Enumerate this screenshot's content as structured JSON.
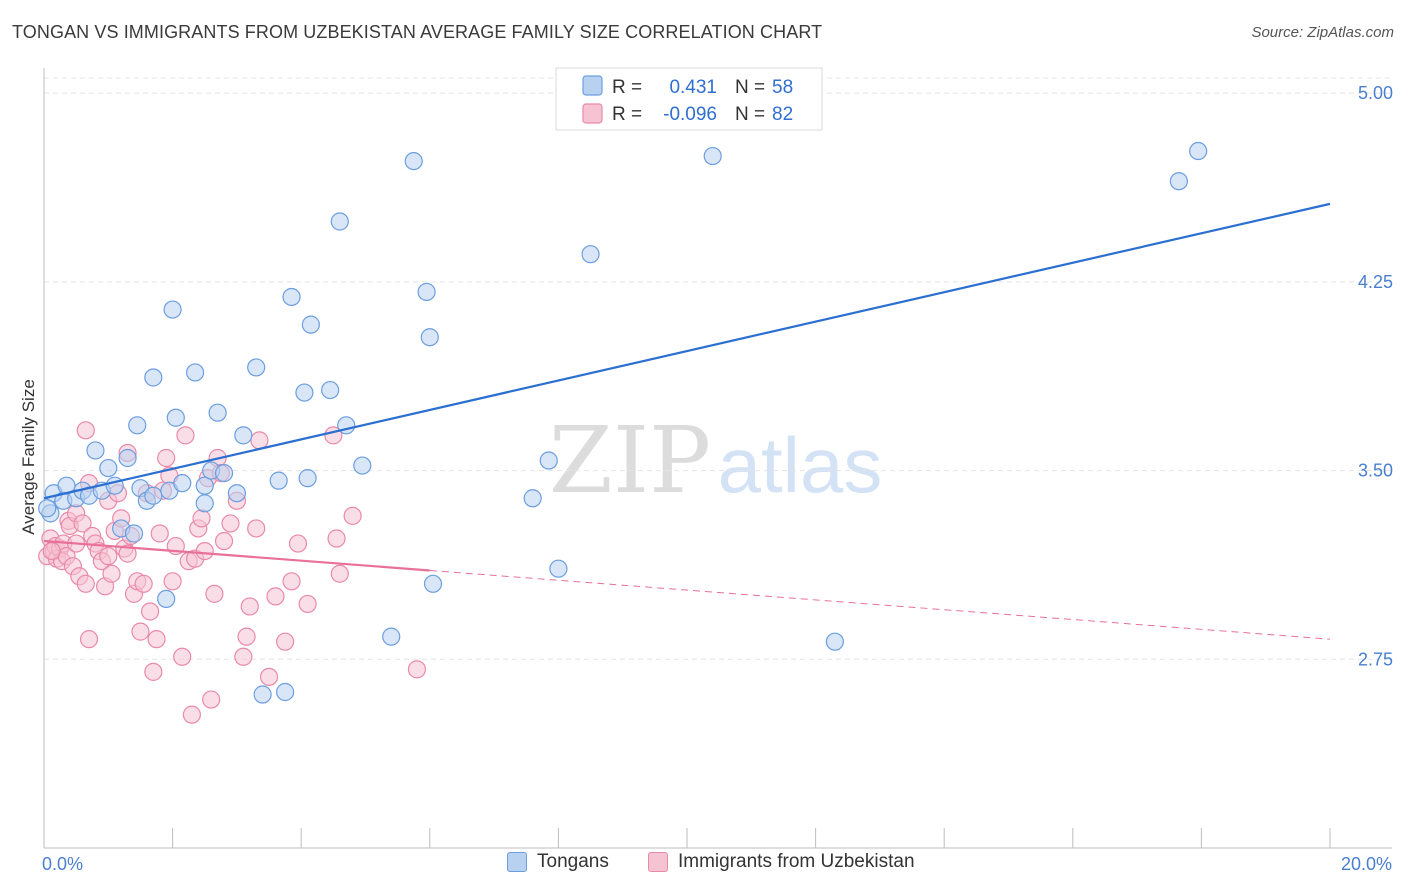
{
  "header": {
    "title": "TONGAN VS IMMIGRANTS FROM UZBEKISTAN AVERAGE FAMILY SIZE CORRELATION CHART",
    "source": "Source: ZipAtlas.com"
  },
  "watermark": {
    "zip": "ZIP",
    "atlas": "atlas"
  },
  "legend": {
    "r_label": "R =",
    "n_label": "N =",
    "rows": [
      {
        "r": "0.431",
        "n": "58"
      },
      {
        "r": "-0.096",
        "n": "82"
      }
    ]
  },
  "bottom_legend": [
    "Tongans",
    "Immigrants from Uzbekistan"
  ],
  "colors": {
    "blue_fill": "#b9d1f1",
    "blue_stroke": "#6b9ee0",
    "blue_line": "#2b6fd0",
    "pink_fill": "#f6c3d3",
    "pink_stroke": "#e98aa8",
    "pink_line": "#e8709a",
    "axis_text": "#4a7fd0",
    "grid": "#e4e4e4"
  },
  "chart_data": {
    "type": "scatter",
    "title": "TONGAN VS IMMIGRANTS FROM UZBEKISTAN AVERAGE FAMILY SIZE CORRELATION CHART",
    "xlabel": "",
    "ylabel": "Average Family Size",
    "xlim": [
      0,
      20
    ],
    "ylim": [
      2.0,
      5.1
    ],
    "x_tick_labels": [
      {
        "value": 0,
        "label": "0.0%"
      },
      {
        "value": 20,
        "label": "20.0%"
      }
    ],
    "x_minor_ticks": [
      0,
      2,
      4,
      6,
      8,
      10,
      12,
      14,
      16,
      18,
      20
    ],
    "y_ticks": [
      {
        "value": 2.75,
        "label": "2.75"
      },
      {
        "value": 3.5,
        "label": "3.50"
      },
      {
        "value": 4.25,
        "label": "4.25"
      },
      {
        "value": 5.0,
        "label": "5.00"
      }
    ],
    "series": [
      {
        "name": "Tongans",
        "color": "blue",
        "r": 0.431,
        "n": 58,
        "trend": {
          "x0": 0,
          "y0": 3.39,
          "x1": 20,
          "y1": 4.56,
          "dashed_from": null
        },
        "points": [
          [
            0.1,
            3.33
          ],
          [
            0.15,
            3.41
          ],
          [
            0.3,
            3.38
          ],
          [
            0.35,
            3.44
          ],
          [
            0.5,
            3.39
          ],
          [
            0.6,
            3.42
          ],
          [
            0.7,
            3.4
          ],
          [
            0.8,
            3.58
          ],
          [
            0.9,
            3.42
          ],
          [
            1.0,
            3.51
          ],
          [
            1.1,
            3.44
          ],
          [
            1.2,
            3.27
          ],
          [
            1.3,
            3.55
          ],
          [
            1.4,
            3.25
          ],
          [
            1.5,
            3.43
          ],
          [
            1.45,
            3.68
          ],
          [
            1.6,
            3.38
          ],
          [
            1.7,
            3.4
          ],
          [
            1.7,
            3.87
          ],
          [
            1.9,
            2.99
          ],
          [
            1.95,
            3.42
          ],
          [
            2.0,
            4.14
          ],
          [
            2.05,
            3.71
          ],
          [
            2.15,
            3.45
          ],
          [
            2.35,
            3.89
          ],
          [
            2.5,
            3.37
          ],
          [
            2.5,
            3.44
          ],
          [
            2.6,
            3.5
          ],
          [
            2.7,
            3.73
          ],
          [
            2.8,
            3.49
          ],
          [
            3.0,
            3.41
          ],
          [
            3.1,
            3.64
          ],
          [
            3.3,
            3.91
          ],
          [
            3.4,
            2.61
          ],
          [
            3.65,
            3.46
          ],
          [
            3.75,
            2.62
          ],
          [
            3.85,
            4.19
          ],
          [
            4.05,
            3.81
          ],
          [
            4.15,
            4.08
          ],
          [
            4.1,
            3.47
          ],
          [
            4.45,
            3.82
          ],
          [
            4.6,
            4.49
          ],
          [
            4.7,
            3.68
          ],
          [
            4.95,
            3.52
          ],
          [
            5.4,
            2.84
          ],
          [
            5.75,
            4.73
          ],
          [
            5.95,
            4.21
          ],
          [
            6.0,
            4.03
          ],
          [
            6.05,
            3.05
          ],
          [
            7.6,
            3.39
          ],
          [
            7.85,
            3.54
          ],
          [
            8.0,
            3.11
          ],
          [
            8.5,
            4.36
          ],
          [
            10.4,
            4.75
          ],
          [
            12.3,
            2.82
          ],
          [
            17.65,
            4.65
          ],
          [
            17.95,
            4.77
          ],
          [
            0.05,
            3.35
          ]
        ]
      },
      {
        "name": "Immigrants from Uzbekistan",
        "color": "pink",
        "r": -0.096,
        "n": 82,
        "trend": {
          "x0": 0,
          "y0": 3.22,
          "x1": 20,
          "y1": 2.83,
          "solid_until": 6.0
        },
        "points": [
          [
            0.05,
            3.16
          ],
          [
            0.1,
            3.23
          ],
          [
            0.15,
            3.18
          ],
          [
            0.18,
            3.2
          ],
          [
            0.2,
            3.15
          ],
          [
            0.25,
            3.19
          ],
          [
            0.28,
            3.14
          ],
          [
            0.3,
            3.21
          ],
          [
            0.35,
            3.16
          ],
          [
            0.38,
            3.3
          ],
          [
            0.4,
            3.28
          ],
          [
            0.45,
            3.12
          ],
          [
            0.5,
            3.33
          ],
          [
            0.5,
            3.21
          ],
          [
            0.55,
            3.08
          ],
          [
            0.6,
            3.29
          ],
          [
            0.65,
            3.05
          ],
          [
            0.65,
            3.66
          ],
          [
            0.7,
            3.45
          ],
          [
            0.7,
            2.83
          ],
          [
            0.75,
            3.24
          ],
          [
            0.8,
            3.21
          ],
          [
            0.85,
            3.18
          ],
          [
            0.9,
            3.14
          ],
          [
            0.95,
            3.04
          ],
          [
            1.0,
            3.16
          ],
          [
            1.0,
            3.38
          ],
          [
            1.05,
            3.09
          ],
          [
            1.1,
            3.26
          ],
          [
            1.15,
            3.41
          ],
          [
            1.2,
            3.31
          ],
          [
            1.25,
            3.19
          ],
          [
            1.3,
            3.57
          ],
          [
            1.3,
            3.17
          ],
          [
            1.35,
            3.24
          ],
          [
            1.4,
            3.01
          ],
          [
            1.45,
            3.06
          ],
          [
            1.5,
            2.86
          ],
          [
            1.55,
            3.05
          ],
          [
            1.6,
            3.41
          ],
          [
            1.65,
            2.94
          ],
          [
            1.7,
            2.7
          ],
          [
            1.75,
            2.83
          ],
          [
            1.8,
            3.25
          ],
          [
            1.85,
            3.42
          ],
          [
            1.9,
            3.55
          ],
          [
            1.95,
            3.48
          ],
          [
            2.0,
            3.06
          ],
          [
            2.05,
            3.2
          ],
          [
            2.15,
            2.76
          ],
          [
            2.2,
            3.64
          ],
          [
            2.25,
            3.14
          ],
          [
            2.3,
            2.53
          ],
          [
            2.35,
            3.15
          ],
          [
            2.4,
            3.27
          ],
          [
            2.45,
            3.31
          ],
          [
            2.5,
            3.18
          ],
          [
            2.55,
            3.47
          ],
          [
            2.6,
            2.59
          ],
          [
            2.65,
            3.01
          ],
          [
            2.7,
            3.55
          ],
          [
            2.75,
            3.49
          ],
          [
            2.8,
            3.22
          ],
          [
            2.9,
            3.29
          ],
          [
            3.0,
            3.38
          ],
          [
            3.1,
            2.76
          ],
          [
            3.15,
            2.84
          ],
          [
            3.2,
            2.96
          ],
          [
            3.3,
            3.27
          ],
          [
            3.35,
            3.62
          ],
          [
            3.5,
            2.68
          ],
          [
            3.6,
            3.0
          ],
          [
            3.75,
            2.82
          ],
          [
            3.85,
            3.06
          ],
          [
            3.95,
            3.21
          ],
          [
            4.1,
            2.97
          ],
          [
            4.5,
            3.64
          ],
          [
            4.55,
            3.23
          ],
          [
            4.6,
            3.09
          ],
          [
            4.8,
            3.32
          ],
          [
            5.8,
            2.71
          ],
          [
            0.12,
            3.18
          ]
        ]
      }
    ]
  }
}
